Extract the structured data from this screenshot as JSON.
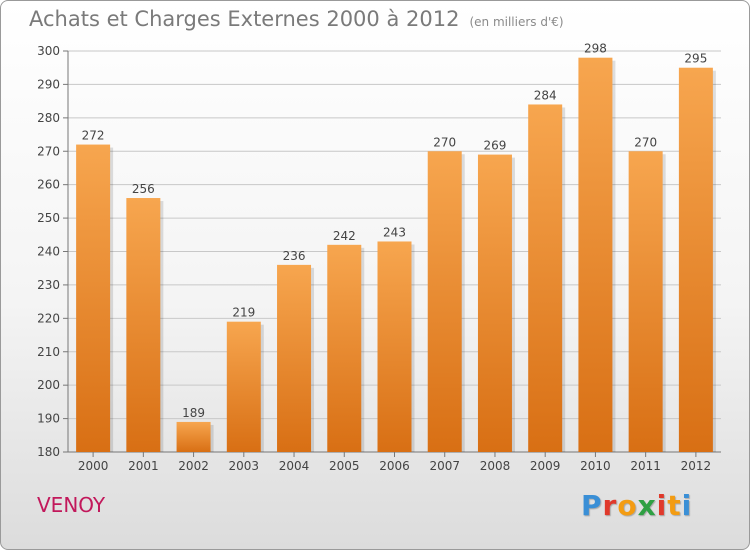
{
  "page": {
    "title": "Achats et Charges Externes 2000 à 2012",
    "unit": "(en milliers d'€)",
    "commune": "VENOY",
    "logo_text": "Proxiti",
    "logo_colors": [
      "#3a8fd6",
      "#e0392b",
      "#f39c12",
      "#2ea043",
      "#e0392b",
      "#f39c12",
      "#3a8fd6"
    ]
  },
  "chart_data": {
    "type": "bar",
    "categories": [
      "2000",
      "2001",
      "2002",
      "2003",
      "2004",
      "2005",
      "2006",
      "2007",
      "2008",
      "2009",
      "2010",
      "2011",
      "2012"
    ],
    "values": [
      272,
      256,
      189,
      219,
      236,
      242,
      243,
      270,
      269,
      284,
      298,
      270,
      295
    ],
    "ylim": [
      180,
      300
    ],
    "yticks": [
      180,
      190,
      200,
      210,
      220,
      230,
      240,
      250,
      260,
      270,
      280,
      290,
      300
    ],
    "grid": true,
    "bar_color_top": "#f7a64f",
    "bar_color_bottom": "#d86f14",
    "data_labels": true
  }
}
